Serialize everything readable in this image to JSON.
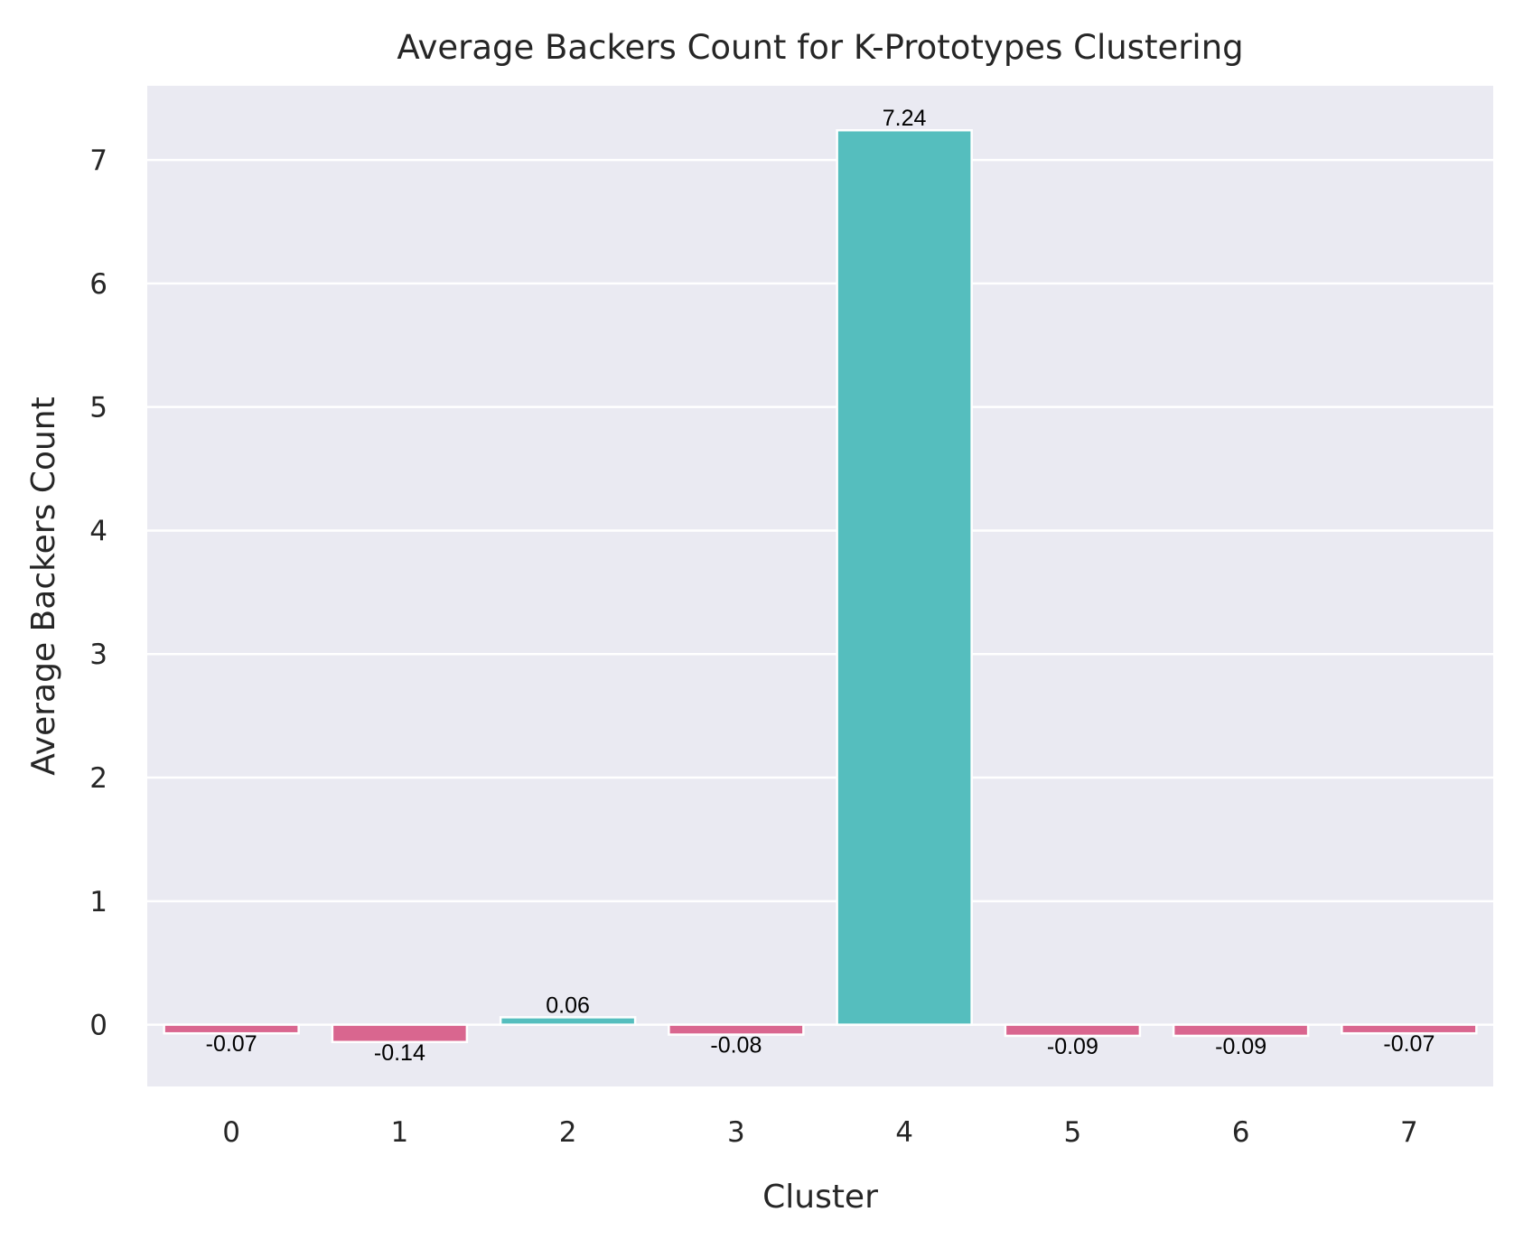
{
  "chart_data": {
    "type": "bar",
    "title": "Average Backers Count for K-Prototypes Clustering",
    "xlabel": "Cluster",
    "ylabel": "Average Backers Count",
    "categories": [
      "0",
      "1",
      "2",
      "3",
      "4",
      "5",
      "6",
      "7"
    ],
    "values": [
      -0.07,
      -0.14,
      0.06,
      -0.08,
      7.24,
      -0.09,
      -0.09,
      -0.07
    ],
    "data_labels": [
      "-0.07",
      "-0.14",
      "0.06",
      "-0.08",
      "7.24",
      "-0.09",
      "-0.09",
      "-0.07"
    ],
    "ylim": [
      -0.5,
      7.6
    ],
    "yticks": [
      0,
      1,
      2,
      3,
      4,
      5,
      6,
      7
    ],
    "grid": true,
    "colors": {
      "positive": "#55bebe",
      "negative": "#d9668f",
      "plot_background": "#eaeaf2",
      "grid": "#ffffff",
      "bar_edge": "#ffffff"
    }
  }
}
